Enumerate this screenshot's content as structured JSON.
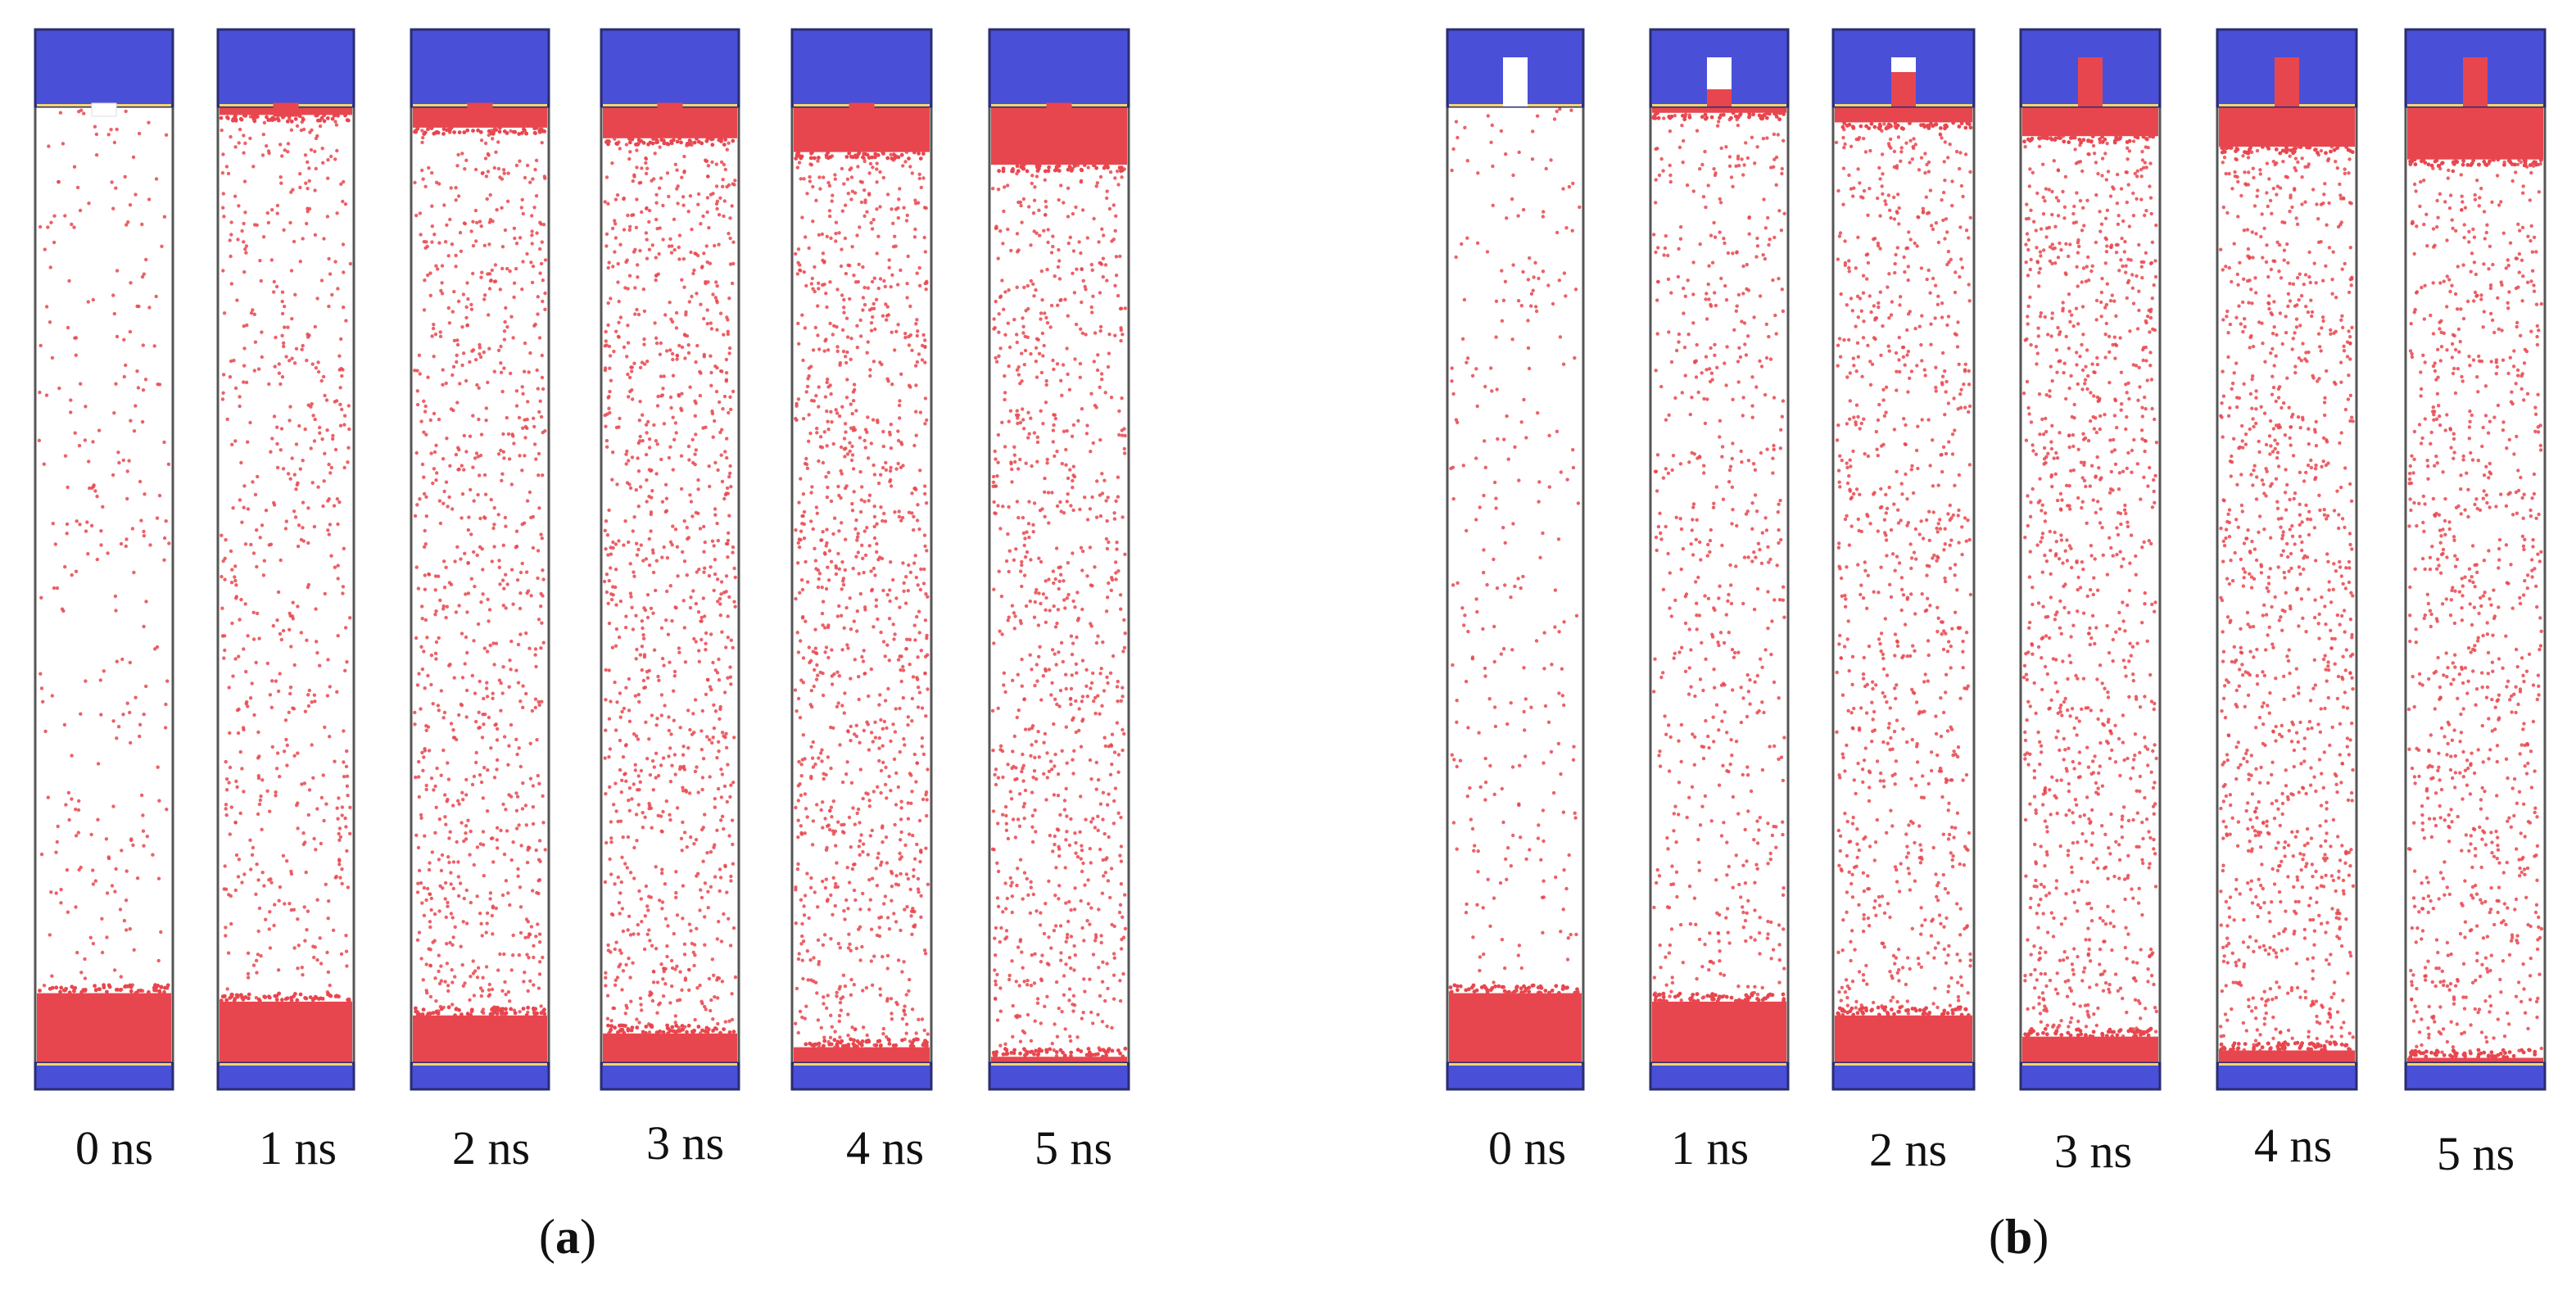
{
  "figure": {
    "colors": {
      "wall": "#4a4fd8",
      "wall_edge": "#2a2d70",
      "liquid": "#e8464e",
      "vapor_dot": "#e8464e",
      "interface": "#f2d56b",
      "box_border": "#555555"
    },
    "panels": [
      {
        "id": "a",
        "label_open": "(",
        "label_letter": "a",
        "label_close": ")",
        "structure": "small protrusion at top wall",
        "frames": [
          {
            "time": "0 ns",
            "upper_film": 0.0,
            "lower_film": 0.066,
            "vapor_density": 0.25
          },
          {
            "time": "1 ns",
            "upper_film": 0.008,
            "lower_film": 0.058,
            "vapor_density": 0.55
          },
          {
            "time": "2 ns",
            "upper_film": 0.02,
            "lower_film": 0.045,
            "vapor_density": 0.8
          },
          {
            "time": "3 ns",
            "upper_film": 0.03,
            "lower_film": 0.028,
            "vapor_density": 0.95
          },
          {
            "time": "4 ns",
            "upper_film": 0.043,
            "lower_film": 0.015,
            "vapor_density": 1.0
          },
          {
            "time": "5 ns",
            "upper_film": 0.055,
            "lower_film": 0.006,
            "vapor_density": 0.85
          }
        ]
      },
      {
        "id": "b",
        "label_open": "(",
        "label_letter": "b",
        "label_close": ")",
        "structure": "cavity in top wall",
        "frames": [
          {
            "time": "0 ns",
            "upper_film": 0.0,
            "lower_film": 0.066,
            "cavity_fill": 0.0,
            "vapor_density": 0.25
          },
          {
            "time": "1 ns",
            "upper_film": 0.006,
            "lower_film": 0.058,
            "cavity_fill": 0.35,
            "vapor_density": 0.55
          },
          {
            "time": "2 ns",
            "upper_film": 0.015,
            "lower_film": 0.045,
            "cavity_fill": 0.7,
            "vapor_density": 0.8
          },
          {
            "time": "3 ns",
            "upper_film": 0.028,
            "lower_film": 0.025,
            "cavity_fill": 1.0,
            "vapor_density": 0.95
          },
          {
            "time": "4 ns",
            "upper_film": 0.038,
            "lower_film": 0.012,
            "cavity_fill": 1.0,
            "vapor_density": 1.0
          },
          {
            "time": "5 ns",
            "upper_film": 0.05,
            "lower_film": 0.005,
            "cavity_fill": 1.0,
            "vapor_density": 0.85
          }
        ]
      }
    ]
  }
}
